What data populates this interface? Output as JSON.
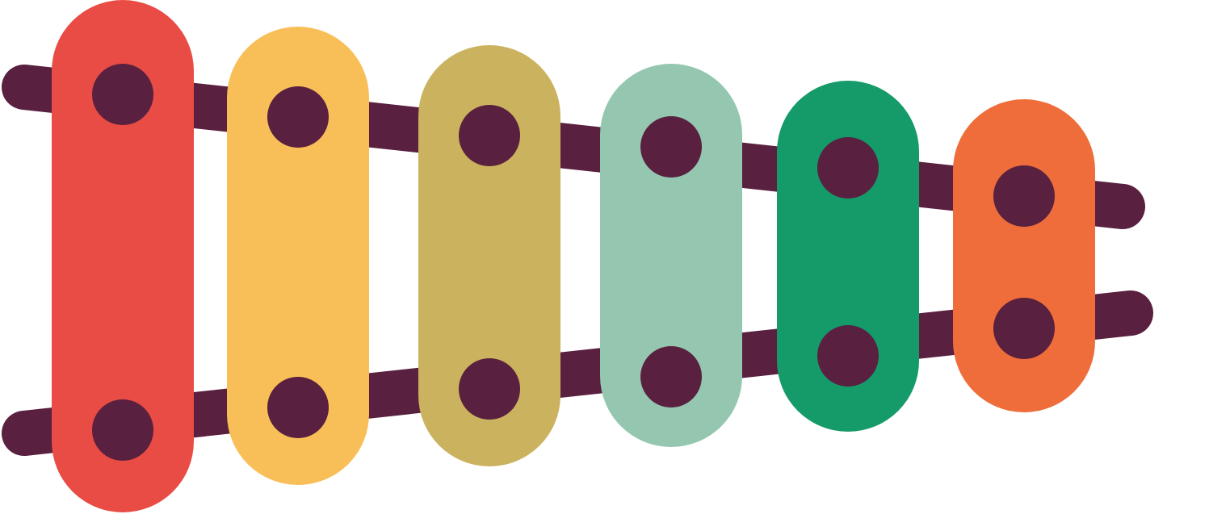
{
  "illustration": {
    "icon": "xylophone-icon",
    "colors": {
      "rail": "#59203F",
      "peg": "#59203F",
      "background": "#FFFFFF"
    },
    "bars": [
      {
        "name": "red",
        "color": "#E84C45"
      },
      {
        "name": "yellow",
        "color": "#F8BF59"
      },
      {
        "name": "mustard",
        "color": "#CBB25E"
      },
      {
        "name": "sage",
        "color": "#95C7B0"
      },
      {
        "name": "green",
        "color": "#159A6A"
      },
      {
        "name": "orange",
        "color": "#EE6D3B"
      }
    ]
  }
}
